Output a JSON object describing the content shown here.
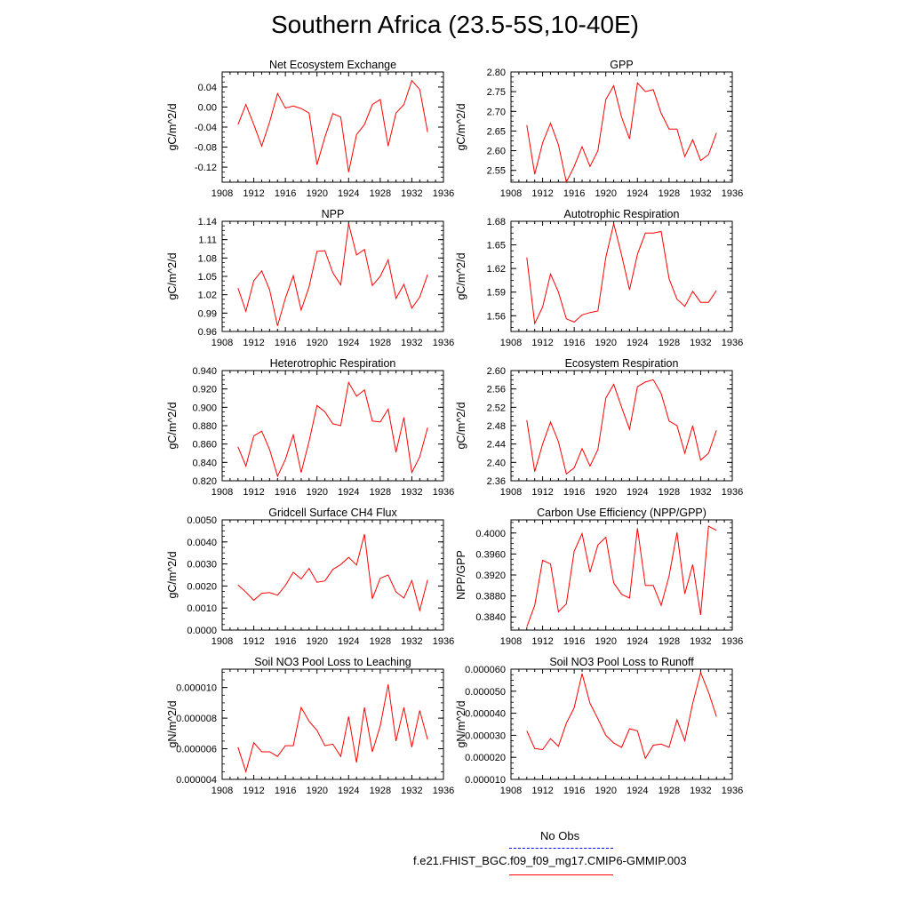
{
  "title": "Southern Africa (23.5-5S,10-40E)",
  "years": [
    1910,
    1911,
    1912,
    1913,
    1914,
    1915,
    1916,
    1917,
    1918,
    1919,
    1920,
    1921,
    1922,
    1923,
    1924,
    1925,
    1926,
    1927,
    1928,
    1929,
    1930,
    1931,
    1932,
    1933,
    1934
  ],
  "legend": {
    "obs_label": "No Obs",
    "model_label": "f.e21.FHIST_BGC.f09_f09_mg17.CMIP6-GMMIP.003",
    "obs_color": "#0000ff",
    "model_color": "#ff0000"
  },
  "colors": {
    "line": "#ff0000",
    "axis": "#000000"
  },
  "chart_data": [
    {
      "type": "line",
      "title": "Net Ecosystem Exchange",
      "ylabel": "gC/m^2/d",
      "xlim": [
        1908,
        1936
      ],
      "xticks": [
        "1908",
        "1912",
        "1916",
        "1920",
        "1924",
        "1928",
        "1932",
        "1936"
      ],
      "ylim": [
        -0.15,
        0.07
      ],
      "yticks": [
        "-0.12",
        "-0.08",
        "-0.04",
        "0.00",
        "0.04"
      ],
      "values": [
        -0.035,
        0.005,
        -0.035,
        -0.078,
        -0.03,
        0.027,
        -0.002,
        0.002,
        -0.003,
        -0.012,
        -0.115,
        -0.06,
        -0.013,
        -0.02,
        -0.13,
        -0.055,
        -0.035,
        0.005,
        0.015,
        -0.078,
        -0.012,
        0.005,
        0.053,
        0.035,
        -0.05
      ]
    },
    {
      "type": "line",
      "title": "GPP",
      "ylabel": "gC/m^2/d",
      "xlim": [
        1908,
        1936
      ],
      "xticks": [
        "1908",
        "1912",
        "1916",
        "1920",
        "1924",
        "1928",
        "1932",
        "1936"
      ],
      "ylim": [
        2.52,
        2.8
      ],
      "yticks": [
        "2.55",
        "2.60",
        "2.65",
        "2.70",
        "2.75",
        "2.80"
      ],
      "values": [
        2.665,
        2.54,
        2.62,
        2.67,
        2.615,
        2.52,
        2.56,
        2.61,
        2.56,
        2.6,
        2.73,
        2.765,
        2.685,
        2.63,
        2.772,
        2.75,
        2.755,
        2.695,
        2.655,
        2.655,
        2.585,
        2.628,
        2.575,
        2.59,
        2.645
      ]
    },
    {
      "type": "line",
      "title": "NPP",
      "ylabel": "gC/m^2/d",
      "xlim": [
        1908,
        1936
      ],
      "xticks": [
        "1908",
        "1912",
        "1916",
        "1920",
        "1924",
        "1928",
        "1932",
        "1936"
      ],
      "ylim": [
        0.96,
        1.14
      ],
      "yticks": [
        "0.96",
        "0.99",
        "1.02",
        "1.05",
        "1.08",
        "1.11",
        "1.14"
      ],
      "values": [
        1.031,
        0.993,
        1.043,
        1.059,
        1.028,
        0.969,
        1.014,
        1.051,
        0.995,
        1.033,
        1.091,
        1.092,
        1.056,
        1.036,
        1.136,
        1.085,
        1.094,
        1.035,
        1.05,
        1.077,
        1.014,
        1.037,
        0.998,
        1.016,
        1.053
      ]
    },
    {
      "type": "line",
      "title": "Autotrophic Respiration",
      "ylabel": "gC/m^2/d",
      "xlim": [
        1908,
        1936
      ],
      "xticks": [
        "1908",
        "1912",
        "1916",
        "1920",
        "1924",
        "1928",
        "1932",
        "1936"
      ],
      "ylim": [
        1.54,
        1.68
      ],
      "yticks": [
        "1.56",
        "1.59",
        "1.62",
        "1.65",
        "1.68"
      ],
      "values": [
        1.634,
        1.55,
        1.571,
        1.613,
        1.59,
        1.556,
        1.552,
        1.561,
        1.564,
        1.566,
        1.634,
        1.677,
        1.637,
        1.593,
        1.638,
        1.665,
        1.665,
        1.667,
        1.607,
        1.581,
        1.572,
        1.591,
        1.577,
        1.577,
        1.592
      ]
    },
    {
      "type": "line",
      "title": "Heterotrophic Respiration",
      "ylabel": "gC/m^2/d",
      "xlim": [
        1908,
        1936
      ],
      "xticks": [
        "1908",
        "1912",
        "1916",
        "1920",
        "1924",
        "1928",
        "1932",
        "1936"
      ],
      "ylim": [
        0.82,
        0.94
      ],
      "yticks": [
        "0.820",
        "0.840",
        "0.860",
        "0.880",
        "0.900",
        "0.920",
        "0.940"
      ],
      "values": [
        0.857,
        0.836,
        0.869,
        0.874,
        0.854,
        0.825,
        0.843,
        0.87,
        0.829,
        0.863,
        0.902,
        0.895,
        0.882,
        0.88,
        0.927,
        0.912,
        0.919,
        0.885,
        0.884,
        0.898,
        0.851,
        0.889,
        0.829,
        0.846,
        0.878
      ]
    },
    {
      "type": "line",
      "title": "Ecosystem Respiration",
      "ylabel": "gC/m^2/d",
      "xlim": [
        1908,
        1936
      ],
      "xticks": [
        "1908",
        "1912",
        "1916",
        "1920",
        "1924",
        "1928",
        "1932",
        "1936"
      ],
      "ylim": [
        2.36,
        2.6
      ],
      "yticks": [
        "2.36",
        "2.40",
        "2.44",
        "2.48",
        "2.52",
        "2.56",
        "2.60"
      ],
      "values": [
        2.492,
        2.38,
        2.44,
        2.488,
        2.445,
        2.375,
        2.388,
        2.43,
        2.392,
        2.428,
        2.54,
        2.57,
        2.52,
        2.472,
        2.565,
        2.575,
        2.58,
        2.55,
        2.49,
        2.48,
        2.42,
        2.48,
        2.405,
        2.42,
        2.47
      ]
    },
    {
      "type": "line",
      "title": "Gridcell Surface CH4 Flux",
      "ylabel": "gC/m^2/d",
      "xlim": [
        1908,
        1936
      ],
      "xticks": [
        "1908",
        "1912",
        "1916",
        "1920",
        "1924",
        "1928",
        "1932",
        "1936"
      ],
      "ylim": [
        0.0,
        0.005
      ],
      "yticks": [
        "0.0000",
        "0.0010",
        "0.0020",
        "0.0030",
        "0.0040",
        "0.0050"
      ],
      "values": [
        0.00205,
        0.00172,
        0.00135,
        0.00167,
        0.0017,
        0.00158,
        0.00202,
        0.00262,
        0.00232,
        0.0028,
        0.00217,
        0.00223,
        0.00275,
        0.00297,
        0.0033,
        0.00295,
        0.00435,
        0.00142,
        0.00235,
        0.0025,
        0.00173,
        0.00145,
        0.00225,
        0.00089,
        0.00228
      ]
    },
    {
      "type": "line",
      "title": "Carbon Use Efficiency (NPP/GPP)",
      "ylabel": "NPP/GPP",
      "xlim": [
        1908,
        1936
      ],
      "xticks": [
        "1908",
        "1912",
        "1916",
        "1920",
        "1924",
        "1928",
        "1932",
        "1936"
      ],
      "ylim": [
        0.3815,
        0.4025
      ],
      "yticks": [
        "0.3840",
        "0.3880",
        "0.3920",
        "0.3960",
        "0.4000"
      ],
      "values": [
        0.3821,
        0.3862,
        0.3948,
        0.3941,
        0.385,
        0.3865,
        0.3965,
        0.3999,
        0.3925,
        0.3977,
        0.3992,
        0.3905,
        0.3883,
        0.3876,
        0.4009,
        0.39,
        0.39,
        0.3862,
        0.3918,
        0.4001,
        0.3884,
        0.394,
        0.3844,
        0.4013,
        0.4005
      ]
    },
    {
      "type": "line",
      "title": "Soil NO3 Pool Loss to Leaching",
      "ylabel": "gN/m^2/d",
      "xlim": [
        1908,
        1936
      ],
      "xticks": [
        "1908",
        "1912",
        "1916",
        "1920",
        "1924",
        "1928",
        "1932",
        "1936"
      ],
      "ylim": [
        4e-06,
        1.12e-05
      ],
      "yticks": [
        "0.000004",
        "0.000006",
        "0.000008",
        "0.000010"
      ],
      "values": [
        6.1e-06,
        4.5e-06,
        6.4e-06,
        5.8e-06,
        5.8e-06,
        5.5e-06,
        6.2e-06,
        6.2e-06,
        8.7e-06,
        7.8e-06,
        7.2e-06,
        6.2e-06,
        6.3e-06,
        5.5e-06,
        8.1e-06,
        5.1e-06,
        8.7e-06,
        5.8e-06,
        7.5e-06,
        1.02e-05,
        6.5e-06,
        8.7e-06,
        6.1e-06,
        8.5e-06,
        6.6e-06
      ]
    },
    {
      "type": "line",
      "title": "Soil NO3 Pool Loss to Runoff",
      "ylabel": "gN/m^2/d",
      "xlim": [
        1908,
        1936
      ],
      "xticks": [
        "1908",
        "1912",
        "1916",
        "1920",
        "1924",
        "1928",
        "1932",
        "1936"
      ],
      "ylim": [
        1e-05,
        6e-05
      ],
      "yticks": [
        "0.000010",
        "0.000020",
        "0.000030",
        "0.000040",
        "0.000050",
        "0.000060"
      ],
      "values": [
        3.2e-05,
        2.4e-05,
        2.35e-05,
        2.85e-05,
        2.5e-05,
        3.55e-05,
        4.25e-05,
        5.8e-05,
        4.45e-05,
        3.75e-05,
        3e-05,
        2.65e-05,
        2.45e-05,
        3.3e-05,
        3.2e-05,
        1.95e-05,
        2.55e-05,
        2.6e-05,
        2.45e-05,
        3.7e-05,
        2.75e-05,
        4.45e-05,
        5.85e-05,
        4.95e-05,
        3.85e-05
      ]
    }
  ]
}
